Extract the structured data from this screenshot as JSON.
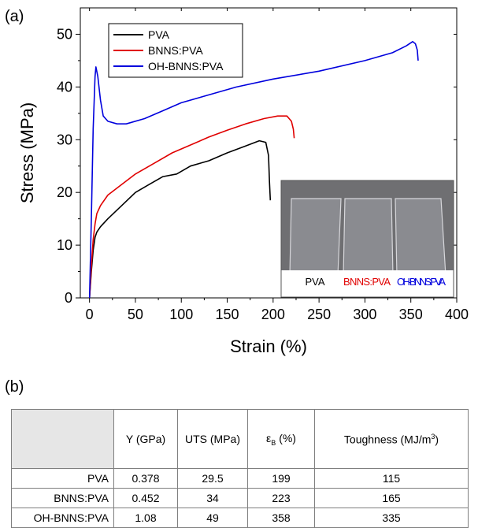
{
  "panel_labels": {
    "a": "(a)",
    "b": "(b)"
  },
  "chart_data": {
    "type": "line",
    "xlabel": "Strain (%)",
    "ylabel": "Stress (MPa)",
    "xlim": [
      -10,
      400
    ],
    "ylim": [
      0,
      55
    ],
    "xticks": [
      0,
      50,
      100,
      150,
      200,
      250,
      300,
      350,
      400
    ],
    "yticks": [
      0,
      10,
      20,
      30,
      40,
      50
    ],
    "legend_position": "top-left",
    "series": [
      {
        "name": "PVA",
        "color": "#000000",
        "x": [
          0,
          2,
          4,
          6,
          8,
          12,
          20,
          35,
          50,
          65,
          80,
          95,
          110,
          130,
          150,
          170,
          185,
          192,
          195,
          196,
          197
        ],
        "y": [
          0,
          5,
          9,
          11.5,
          12.5,
          13.5,
          15,
          17.5,
          20,
          21.5,
          23,
          23.5,
          25,
          26,
          27.5,
          28.8,
          29.8,
          29.5,
          27,
          22,
          18.5
        ]
      },
      {
        "name": "BNNS:PVA",
        "color": "#e00000",
        "x": [
          0,
          2,
          4,
          6,
          8,
          12,
          20,
          35,
          50,
          70,
          90,
          110,
          130,
          150,
          170,
          190,
          205,
          215,
          220,
          222,
          223
        ],
        "y": [
          0,
          6,
          11,
          14,
          16,
          17.5,
          19.5,
          21.5,
          23.5,
          25.5,
          27.5,
          29,
          30.5,
          31.8,
          33,
          34,
          34.5,
          34.5,
          33.5,
          32,
          30.3
        ]
      },
      {
        "name": "OH-BNNS:PVA",
        "color": "#0000dd",
        "x": [
          0,
          2,
          4,
          6,
          7,
          9,
          12,
          15,
          20,
          30,
          40,
          60,
          80,
          100,
          130,
          160,
          200,
          250,
          300,
          330,
          345,
          352,
          355,
          357,
          358
        ],
        "y": [
          0,
          15,
          32,
          42,
          43.8,
          42,
          37.5,
          34.5,
          33.5,
          33,
          33,
          34,
          35.5,
          37,
          38.5,
          40,
          41.5,
          43,
          45,
          46.5,
          47.8,
          48.6,
          48.2,
          47,
          45
        ]
      }
    ],
    "inset_labels": [
      "PVA",
      "BNNS:PVA",
      "OH-BNNS:PVA"
    ],
    "inset_label_colors": [
      "#000000",
      "#e00000",
      "#0000dd"
    ]
  },
  "table": {
    "headers": [
      "Y (GPa)",
      "UTS (MPa)",
      "(%)",
      "Toughness (MJ/m"
    ],
    "epsilon_symbol": "ε",
    "epsilon_subscript": "B",
    "cube_superscript": "3",
    "close_paren": ")",
    "rows": [
      {
        "name": "PVA",
        "values": [
          "0.378",
          "29.5",
          "199",
          "115"
        ]
      },
      {
        "name": "BNNS:PVA",
        "values": [
          "0.452",
          "34",
          "223",
          "165"
        ]
      },
      {
        "name": "OH-BNNS:PVA",
        "values": [
          "1.08",
          "49",
          "358",
          "335"
        ]
      }
    ]
  }
}
